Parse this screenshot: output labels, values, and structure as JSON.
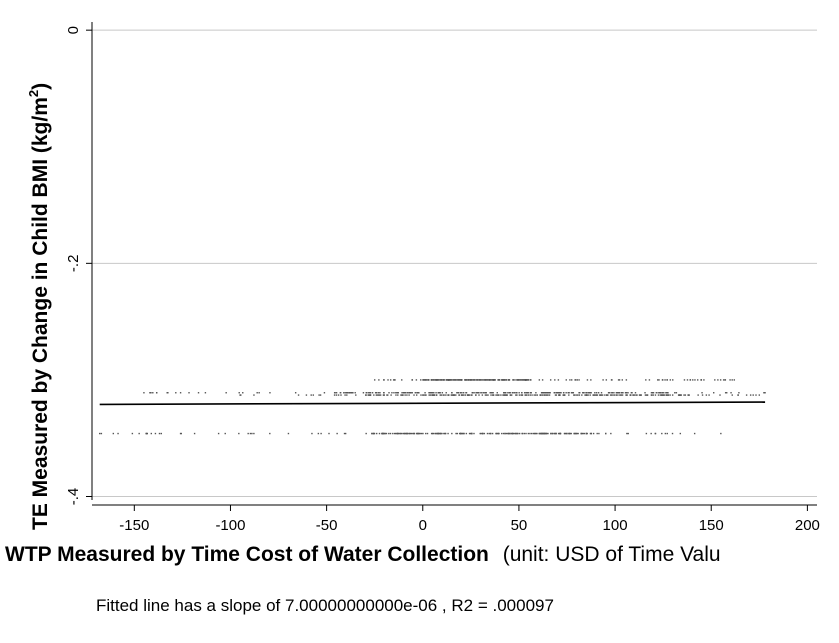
{
  "chart_data": {
    "type": "scatter",
    "title": "",
    "xlabel_main": "WTP Measured by Time Cost of Water Collection",
    "xlabel_unit": "(unit: USD of Time Valu",
    "ylabel_main": "TE Measured by Change in Child BMI (kg/m",
    "ylabel_sup": "2",
    "ylabel_close": ")",
    "xlim": [
      -172,
      205
    ],
    "ylim": [
      -0.403,
      0.007
    ],
    "x_ticks": [
      -150,
      -100,
      -50,
      0,
      50,
      100,
      150,
      200
    ],
    "x_tick_labels": [
      "-150",
      "-100",
      "-50",
      "0",
      "50",
      "100",
      "150",
      "200"
    ],
    "y_ticks": [
      0,
      -0.2,
      -0.4
    ],
    "y_tick_labels": [
      "0",
      "-.2",
      "-.4"
    ],
    "grid": true,
    "bands": [
      {
        "y": -0.3,
        "x_min": -25,
        "x_max": 162,
        "dense_min": 0,
        "dense_max": 58
      },
      {
        "y": -0.311,
        "x_min": -145,
        "x_max": 178,
        "dense_min": -45,
        "dense_max": 130
      },
      {
        "y": -0.313,
        "x_min": -95,
        "x_max": 175,
        "dense_min": -30,
        "dense_max": 140
      },
      {
        "y": -0.346,
        "x_min": -168,
        "x_max": 155,
        "dense_min": -30,
        "dense_max": 90
      }
    ],
    "fitted_line": {
      "x": [
        -168,
        178
      ],
      "y": [
        -0.321,
        -0.319
      ]
    },
    "annotation": "Fitted line has a slope of 7.00000000000e-06 , R2 = .000097"
  }
}
